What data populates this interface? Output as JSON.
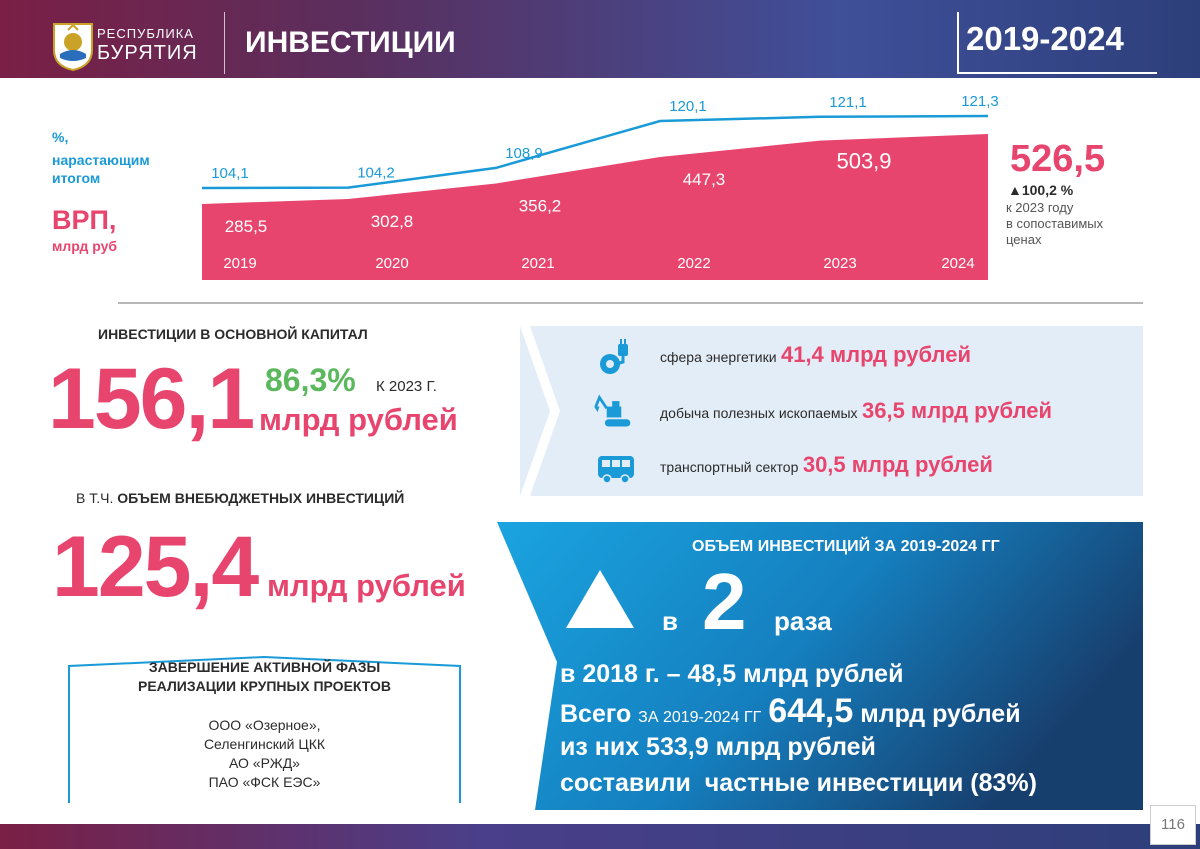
{
  "header": {
    "region_line1": "РЕСПУБЛИКА",
    "region_line2": "БУРЯТИЯ",
    "title": "ИНВЕСТИЦИИ",
    "period": "2019-2024"
  },
  "chart_labels": {
    "percent_label_1": "%,",
    "percent_label_2": "нарастающим",
    "percent_label_3": "итогом",
    "grp_label": "ВРП,",
    "grp_unit": "млрд руб"
  },
  "chart_data": {
    "type": "area",
    "x": [
      "2019",
      "2020",
      "2021",
      "2022",
      "2023",
      "2024"
    ],
    "series": [
      {
        "name": "ВРП, млрд руб",
        "values": [
          285.5,
          302.8,
          356.2,
          447.3,
          503.9,
          526.5
        ],
        "labels": [
          "285,5",
          "302,8",
          "356,2",
          "447,3",
          "503,9",
          ""
        ],
        "color": "#e8456e"
      },
      {
        "name": "%, нарастающим итогом",
        "values": [
          104.1,
          104.2,
          108.9,
          120.1,
          121.1,
          121.3
        ],
        "labels": [
          "104,1",
          "104,2",
          "108,9",
          "120,1",
          "121,1",
          "121,3"
        ],
        "color": "#1a9ad6"
      }
    ]
  },
  "grp_summary": {
    "value": "526,5",
    "growth": "▲100,2 %",
    "note_1": "к 2023 году",
    "note_2": "в сопоставимых",
    "note_3": "ценах"
  },
  "investments": {
    "heading": "ИНВЕСТИЦИИ В ОСНОВНОЙ КАПИТАЛ",
    "value": "156,1",
    "percent": "86,3%",
    "percent_note": "К 2023 Г.",
    "unit": "млрд рублей"
  },
  "extrabudget": {
    "heading_prefix": "В Т.Ч.",
    "heading": "ОБЪЕМ ВНЕБЮДЖЕТНЫХ ИНВЕСТИЦИЙ",
    "value": "125,4",
    "unit": "млрд рублей"
  },
  "sectors": [
    {
      "icon": "power-plug-gear-icon",
      "name": "сфера энергетики",
      "value": "41,4 млрд рублей"
    },
    {
      "icon": "excavator-icon",
      "name": "добыча полезных ископаемых",
      "value": "36,5 млрд рублей"
    },
    {
      "icon": "bus-icon",
      "name": "транспортный сектор",
      "value": "30,5 млрд рублей"
    }
  ],
  "projects": {
    "title_1": "ЗАВЕРШЕНИЕ АКТИВНОЙ ФАЗЫ",
    "title_2": "РЕАЛИЗАЦИИ КРУПНЫХ ПРОЕКТОВ",
    "items": [
      "ООО «Озерное»,",
      "Селенгинский ЦКК",
      "АО «РЖД»",
      "ПАО «ФСК ЕЭС»"
    ]
  },
  "volume": {
    "heading": "ОБЪЕМ ИНВЕСТИЦИЙ ЗА 2019-2024 ГГ",
    "growth_prefix": "в",
    "growth_value": "2",
    "growth_suffix": "раза",
    "line_1": "в 2018 г. – 48,5 млрд рублей",
    "line_2_a": "Всего",
    "line_2_b": "ЗА 2019-2024 ГГ",
    "line_2_c": "644,5",
    "line_2_d": "млрд рублей",
    "line_3": "из них 533,9 млрд рублей",
    "line_4": "составили  частные инвестиции (83%)"
  },
  "page_number": "116",
  "colors": {
    "accent_red": "#e8456e",
    "accent_blue": "#1a9ad6",
    "accent_green": "#5cb85c"
  }
}
